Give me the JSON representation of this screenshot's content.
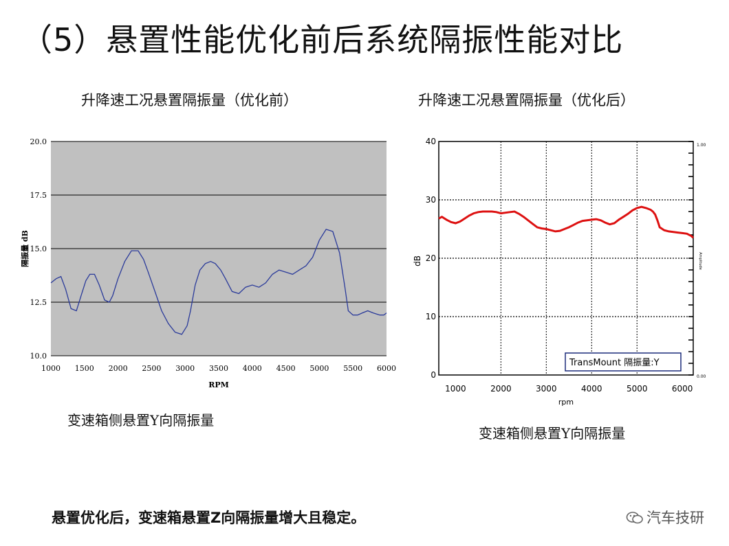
{
  "page": {
    "title": "（5）悬置性能优化前后系统隔振性能对比",
    "bottom_note": "悬置优化后，变速箱悬置Z向隔振量增大且稳定。",
    "brand": "汽车技研"
  },
  "chart_data": [
    {
      "type": "line",
      "title": "升降速工况悬置隔振量（优化前）",
      "caption": "变速箱侧悬置Y向隔振量",
      "xlabel": "RPM",
      "ylabel": "隔振量 dB",
      "xlim": [
        1000,
        6000
      ],
      "ylim": [
        10.0,
        20.0
      ],
      "xticks": [
        "1000",
        "1500",
        "2000",
        "2500",
        "3000",
        "3500",
        "4000",
        "4500",
        "5000",
        "5500",
        "6000"
      ],
      "yticks": [
        "10.0",
        "12.5",
        "15.0",
        "17.5",
        "20.0"
      ],
      "grid": "horizontal",
      "background": "#c0c0c0",
      "series": [
        {
          "color": "#2a3a9a",
          "x": [
            1000,
            1080,
            1150,
            1220,
            1300,
            1380,
            1450,
            1520,
            1580,
            1650,
            1720,
            1800,
            1870,
            1920,
            2000,
            2100,
            2200,
            2300,
            2380,
            2450,
            2550,
            2650,
            2750,
            2850,
            2950,
            3030,
            3080,
            3150,
            3220,
            3300,
            3380,
            3450,
            3530,
            3600,
            3700,
            3800,
            3900,
            4000,
            4100,
            4200,
            4300,
            4400,
            4500,
            4600,
            4700,
            4800,
            4900,
            5000,
            5100,
            5200,
            5300,
            5380,
            5430,
            5500,
            5570,
            5640,
            5720,
            5800,
            5900,
            5960,
            6000
          ],
          "y": [
            13.4,
            13.6,
            13.7,
            13.1,
            12.2,
            12.1,
            12.8,
            13.5,
            13.8,
            13.8,
            13.3,
            12.6,
            12.5,
            12.8,
            13.6,
            14.4,
            14.9,
            14.9,
            14.5,
            13.9,
            13.0,
            12.1,
            11.5,
            11.1,
            11.0,
            11.4,
            12.1,
            13.3,
            14.0,
            14.3,
            14.4,
            14.3,
            14.0,
            13.6,
            13.0,
            12.9,
            13.2,
            13.3,
            13.2,
            13.4,
            13.8,
            14.0,
            13.9,
            13.8,
            14.0,
            14.2,
            14.6,
            15.4,
            15.9,
            15.8,
            14.8,
            13.2,
            12.1,
            11.9,
            11.9,
            12.0,
            12.1,
            12.0,
            11.9,
            11.9,
            12.0
          ]
        }
      ]
    },
    {
      "type": "line",
      "title": "升降速工况悬置隔振量（优化后）",
      "caption": "变速箱侧悬置Y向隔振量",
      "xlabel": "rpm",
      "ylabel": "dB",
      "xlim": [
        630,
        6240
      ],
      "ylim": [
        0,
        40
      ],
      "xticks": [
        "1000",
        "2000",
        "3000",
        "4000",
        "5000",
        "6000"
      ],
      "yticks": [
        "0",
        "10",
        "20",
        "30",
        "40"
      ],
      "right_axis": {
        "top": "1.00",
        "bottom": "0.00",
        "label": "Amplitude"
      },
      "grid": "dotted",
      "legend": "TransMount 隔振量:Y",
      "series": [
        {
          "name": "TransMount 隔振量:Y",
          "color": "#dd1111",
          "x": [
            630,
            700,
            800,
            900,
            1000,
            1100,
            1200,
            1300,
            1400,
            1500,
            1600,
            1700,
            1800,
            1900,
            2000,
            2100,
            2200,
            2300,
            2400,
            2500,
            2600,
            2700,
            2800,
            2900,
            3000,
            3100,
            3200,
            3300,
            3400,
            3500,
            3600,
            3700,
            3800,
            3900,
            4000,
            4100,
            4200,
            4300,
            4400,
            4500,
            4600,
            4700,
            4800,
            4900,
            5000,
            5100,
            5200,
            5300,
            5350,
            5400,
            5450,
            5500,
            5600,
            5700,
            5800,
            5900,
            6000,
            6100,
            6200,
            6240
          ],
          "y": [
            26.8,
            27.1,
            26.6,
            26.2,
            26.0,
            26.3,
            26.8,
            27.3,
            27.7,
            27.9,
            28.0,
            28.0,
            28.0,
            27.9,
            27.7,
            27.8,
            27.9,
            28.0,
            27.6,
            27.1,
            26.5,
            25.9,
            25.3,
            25.1,
            25.0,
            24.8,
            24.6,
            24.7,
            25.0,
            25.3,
            25.7,
            26.1,
            26.4,
            26.5,
            26.6,
            26.7,
            26.5,
            26.1,
            25.8,
            26.0,
            26.6,
            27.1,
            27.6,
            28.2,
            28.6,
            28.8,
            28.6,
            28.3,
            28.0,
            27.5,
            26.5,
            25.3,
            24.8,
            24.6,
            24.5,
            24.4,
            24.3,
            24.2,
            23.8,
            23.5
          ]
        }
      ]
    }
  ]
}
